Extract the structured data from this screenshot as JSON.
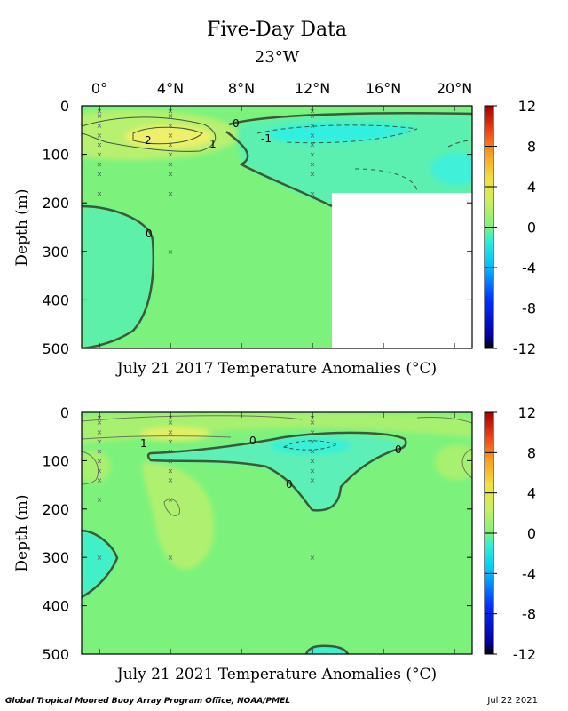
{
  "title": "Five-Day Data",
  "subtitle": "23°W",
  "footer_left": "Global Tropical Moored Buoy Array Program Office, NOAA/PMEL",
  "footer_right": "Jul 22 2021",
  "colors": {
    "background_field": "#7cf27c",
    "positive": "#e8f07a",
    "negative": "#3ff0dc",
    "missing": "#ffffff",
    "contour": "#3a5a3a"
  },
  "chart_data": [
    {
      "type": "heatmap",
      "panel": "top",
      "xlabel": "July 21 2017 Temperature Anomalies (°C)",
      "ylabel": "Depth (m)",
      "x_ticks": [
        "0°",
        "4°N",
        "8°N",
        "12°N",
        "16°N",
        "20°N"
      ],
      "x_tick_values": [
        0,
        4,
        8,
        12,
        16,
        20
      ],
      "xlim": [
        -1,
        21
      ],
      "y_ticks": [
        0,
        100,
        200,
        300,
        400,
        500
      ],
      "ylim": [
        0,
        500
      ],
      "y_inverted": true,
      "colorbar": {
        "ticks": [
          12,
          8,
          4,
          0,
          -4,
          -8,
          -12
        ],
        "range": [
          -12,
          12
        ]
      },
      "missing_region": {
        "lat_range": [
          13,
          21
        ],
        "depth_range": [
          180,
          500
        ]
      },
      "contour_labels": [
        "0",
        "-1",
        "2",
        "1",
        "0"
      ],
      "sample_points": [
        {
          "lat": 0,
          "depths": [
            10,
            20,
            40,
            60,
            80,
            100,
            120,
            140,
            180
          ]
        },
        {
          "lat": 4,
          "depths": [
            10,
            20,
            40,
            60,
            80,
            100,
            120,
            140,
            180,
            300
          ]
        },
        {
          "lat": 12,
          "depths": [
            10,
            20,
            40,
            60,
            80,
            100,
            120,
            140,
            180
          ]
        }
      ],
      "anomalies": [
        {
          "lat": 4,
          "depth": 60,
          "value": 2.3
        },
        {
          "lat": 12,
          "depth": 50,
          "value": -2.0
        },
        {
          "lat": 0,
          "depth": 300,
          "value": -0.7
        }
      ]
    },
    {
      "type": "heatmap",
      "panel": "bottom",
      "xlabel": "July 21 2021 Temperature Anomalies (°C)",
      "ylabel": "Depth (m)",
      "x_ticks": [
        "0°",
        "4°N",
        "8°N",
        "12°N",
        "16°N",
        "20°N"
      ],
      "x_tick_values": [
        0,
        4,
        8,
        12,
        16,
        20
      ],
      "xlim": [
        -1,
        21
      ],
      "y_ticks": [
        0,
        100,
        200,
        300,
        400,
        500
      ],
      "ylim": [
        0,
        500
      ],
      "y_inverted": true,
      "colorbar": {
        "ticks": [
          12,
          8,
          4,
          0,
          -4,
          -8,
          -12
        ],
        "range": [
          -12,
          12
        ]
      },
      "contour_labels": [
        "1",
        "0",
        "0",
        "0"
      ],
      "sample_points": [
        {
          "lat": 0,
          "depths": [
            10,
            20,
            40,
            60,
            80,
            100,
            120,
            140,
            180,
            300
          ]
        },
        {
          "lat": 4,
          "depths": [
            10,
            20,
            40,
            60,
            80,
            100,
            120,
            140,
            180,
            300
          ]
        },
        {
          "lat": 12,
          "depths": [
            10,
            20,
            40,
            60,
            80,
            100,
            120,
            140,
            300
          ]
        }
      ],
      "anomalies": [
        {
          "lat": 4,
          "depth": 40,
          "value": 1.2
        },
        {
          "lat": 12,
          "depth": 70,
          "value": -1.5
        },
        {
          "lat": 0,
          "depth": 310,
          "value": -0.8
        }
      ]
    }
  ]
}
